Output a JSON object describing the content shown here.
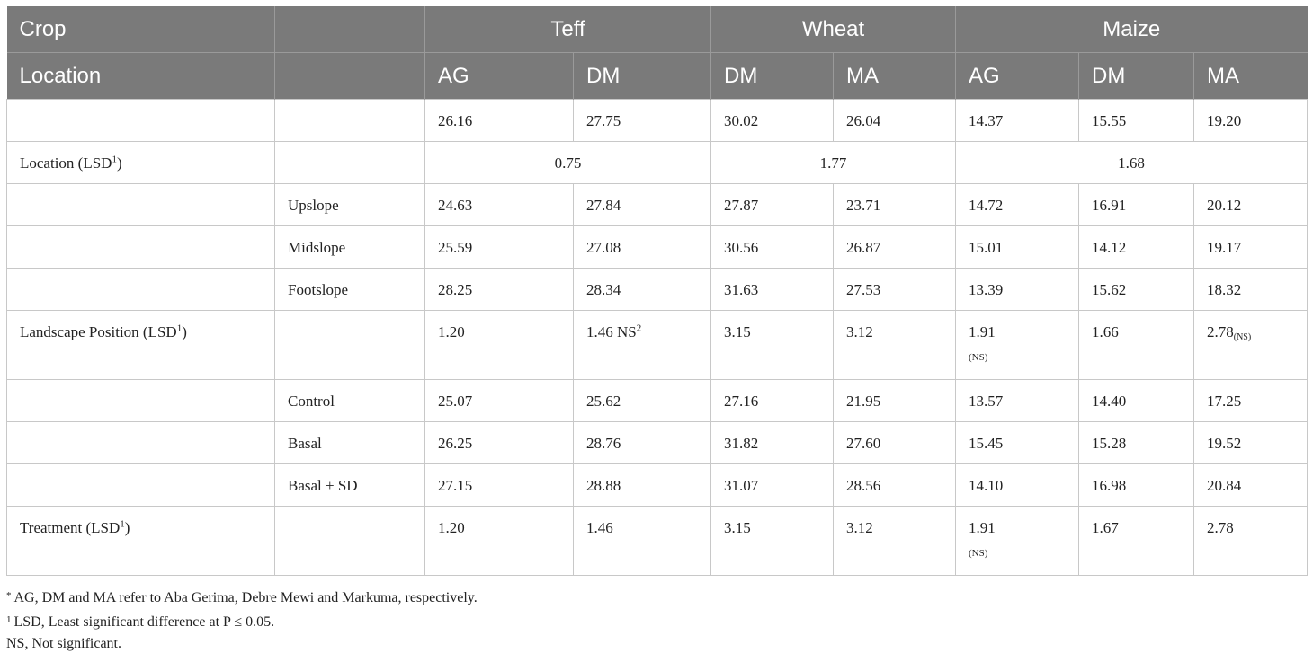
{
  "header": {
    "row1": {
      "crop_label": "Crop",
      "groups": [
        "Teff",
        "Wheat",
        "Maize"
      ]
    },
    "row2": {
      "location_label": "Location",
      "sites": [
        "AG",
        "DM",
        "DM",
        "MA",
        "AG",
        "DM",
        "MA"
      ]
    }
  },
  "rows": {
    "means": {
      "values": [
        "26.16",
        "27.75",
        "30.02",
        "26.04",
        "14.37",
        "15.55",
        "19.20"
      ]
    },
    "location_lsd": {
      "label": "Location (LSD",
      "sup": "1",
      "label_tail": ")",
      "teff": "0.75",
      "wheat": "1.77",
      "maize": "1.68"
    },
    "upslope": {
      "label": "Upslope",
      "values": [
        "24.63",
        "27.84",
        "27.87",
        "23.71",
        "14.72",
        "16.91",
        "20.12"
      ]
    },
    "midslope": {
      "label": "Midslope",
      "values": [
        "25.59",
        "27.08",
        "30.56",
        "26.87",
        "15.01",
        "14.12",
        "19.17"
      ]
    },
    "footslope": {
      "label": "Footslope",
      "values": [
        "28.25",
        "28.34",
        "31.63",
        "27.53",
        "13.39",
        "15.62",
        "18.32"
      ]
    },
    "landscape_lsd": {
      "label": "Landscape Position (LSD",
      "sup": "1",
      "label_tail": ")",
      "teff_ag": "1.20",
      "teff_dm": "1.46 NS",
      "teff_dm_sup": "2",
      "wheat_dm": "3.15",
      "wheat_ma": "3.12",
      "maize_ag": "1.91",
      "maize_ag_note": "(NS)",
      "maize_dm": "1.66",
      "maize_ma": "2.78",
      "maize_ma_note": "(NS)"
    },
    "control": {
      "label": "Control",
      "values": [
        "25.07",
        "25.62",
        "27.16",
        "21.95",
        "13.57",
        "14.40",
        "17.25"
      ]
    },
    "basal": {
      "label": "Basal",
      "values": [
        "26.25",
        "28.76",
        "31.82",
        "27.60",
        "15.45",
        "15.28",
        "19.52"
      ]
    },
    "basal_sd": {
      "label": "Basal + SD",
      "values": [
        "27.15",
        "28.88",
        "31.07",
        "28.56",
        "14.10",
        "16.98",
        "20.84"
      ]
    },
    "treatment_lsd": {
      "label": "Treatment (LSD",
      "sup": "1",
      "label_tail": ")",
      "teff_ag": "1.20",
      "teff_dm": "1.46",
      "wheat_dm": "3.15",
      "wheat_ma": "3.12",
      "maize_ag": "1.91",
      "maize_ag_note": "(NS)",
      "maize_dm": "1.67",
      "maize_ma": "2.78"
    }
  },
  "footnotes": {
    "star_mark": "*",
    "star_text": "AG, DM and MA refer to Aba Gerima, Debre Mewi and Markuma, respectively.",
    "one_mark": "1",
    "one_text": "LSD, Least significant difference at P ≤ 0.05.",
    "ns_text": "NS, Not significant."
  }
}
